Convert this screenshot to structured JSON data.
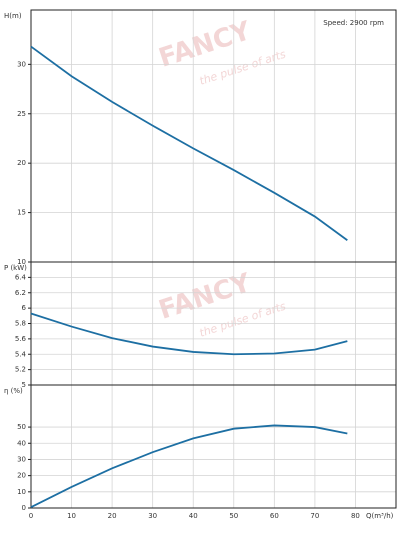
{
  "chart_data": [
    {
      "type": "line",
      "y_label": "H(m)",
      "annotation": "Speed: 2900 rpm",
      "watermark": "FANCY",
      "watermark_sub": "the pulse of arts",
      "x": [
        0,
        10,
        20,
        30,
        40,
        50,
        60,
        70,
        78
      ],
      "series": [
        {
          "color": "#1d6fa3",
          "values": [
            31.8,
            28.8,
            26.2,
            23.8,
            21.5,
            19.3,
            17.0,
            14.6,
            12.2
          ]
        }
      ],
      "xlim": [
        0,
        90
      ],
      "xticks": [
        0,
        10,
        20,
        30,
        40,
        50,
        60,
        70,
        80
      ],
      "ylim": [
        10,
        35.5
      ],
      "yticks": [
        10,
        15,
        20,
        25,
        30
      ],
      "grid": true
    },
    {
      "type": "line",
      "y_label": "P (kW)",
      "watermark": "FANCY",
      "watermark_sub": "the pulse of arts",
      "x": [
        0,
        10,
        20,
        30,
        40,
        50,
        60,
        70,
        78
      ],
      "series": [
        {
          "color": "#1d6fa3",
          "values": [
            5.93,
            5.76,
            5.61,
            5.5,
            5.43,
            5.4,
            5.41,
            5.46,
            5.57
          ]
        }
      ],
      "xlim": [
        0,
        90
      ],
      "xticks": [
        0,
        10,
        20,
        30,
        40,
        50,
        60,
        70,
        80
      ],
      "ylim": [
        5,
        6.6
      ],
      "yticks": [
        5,
        5.2,
        5.4,
        5.6,
        5.8,
        6,
        6.2,
        6.4
      ],
      "grid": true
    },
    {
      "type": "line",
      "y_label": "η (%)",
      "x_label": "Q(m³/h)",
      "x": [
        0,
        10,
        20,
        30,
        40,
        50,
        60,
        70,
        78
      ],
      "series": [
        {
          "color": "#1d6fa3",
          "values": [
            0.5,
            13,
            24.5,
            34.5,
            43,
            49,
            51,
            50,
            46
          ]
        }
      ],
      "xlim": [
        0,
        90
      ],
      "xticks": [
        0,
        10,
        20,
        30,
        40,
        50,
        60,
        70,
        80
      ],
      "ylim": [
        0,
        76
      ],
      "yticks": [
        0,
        10,
        20,
        30,
        40,
        50
      ],
      "grid": true
    }
  ]
}
